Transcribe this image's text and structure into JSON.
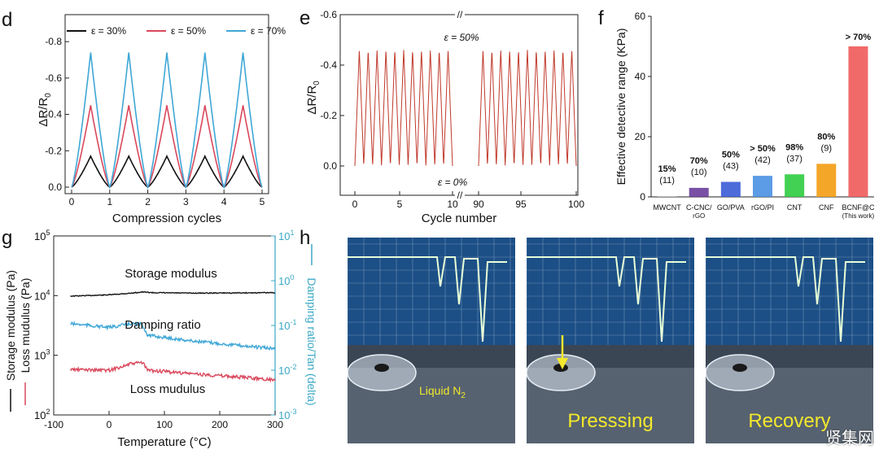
{
  "panel_labels": {
    "d": "d",
    "e": "e",
    "f": "f",
    "g": "g",
    "h": "h"
  },
  "chart_data": [
    {
      "id": "d",
      "type": "line",
      "xlabel": "Compression cycles",
      "ylabel": "ΔR/R",
      "ylabel_sub": "0",
      "xlim": [
        0,
        5
      ],
      "ylim": [
        0.0,
        -0.85
      ],
      "xticks": [
        "0",
        "1",
        "2",
        "3",
        "4",
        "5"
      ],
      "yticks": [
        "0.0",
        "-0.2",
        "-0.4",
        "-0.6",
        "-0.8"
      ],
      "legend_position": "top",
      "series": [
        {
          "name": "ε = 30%",
          "color": "#111111",
          "peak": -0.17,
          "peaks_at": [
            0.5,
            1.5,
            2.5,
            3.5,
            4.5
          ]
        },
        {
          "name": "ε = 50%",
          "color": "#d9485c",
          "peak": -0.45,
          "peaks_at": [
            0.5,
            1.5,
            2.5,
            3.5,
            4.5
          ]
        },
        {
          "name": "ε = 70%",
          "color": "#3fa7d6",
          "peak": -0.74,
          "peaks_at": [
            0.5,
            1.5,
            2.5,
            3.5,
            4.5
          ]
        }
      ]
    },
    {
      "id": "e",
      "type": "line",
      "xlabel": "Cycle number",
      "ylabel": "ΔR/R",
      "ylabel_sub": "0",
      "ylim": [
        0.0,
        -0.6
      ],
      "xticks": [
        "0",
        "5",
        "10",
        "90",
        "95",
        "100"
      ],
      "yticks": [
        "0.0",
        "-0.2",
        "-0.4",
        "-0.6"
      ],
      "annotations": [
        "ε = 50%",
        "ε = 0%"
      ],
      "axis_break": true,
      "series": [
        {
          "name": "",
          "color": "#c0392b",
          "peak": -0.46,
          "segments": [
            {
              "from": 0,
              "to": 10
            },
            {
              "from": 90,
              "to": 100
            }
          ]
        }
      ]
    },
    {
      "id": "f",
      "type": "bar",
      "ylabel": "Effective detective range (KPa)",
      "ylim": [
        0,
        60
      ],
      "yticks": [
        "0",
        "20",
        "40",
        "60"
      ],
      "categories": [
        "MWCNT",
        "C-CNC/\nrGO",
        "GO/PVA",
        "rGO/PI",
        "CNT",
        "CNF",
        "BCNF@C\n(This work)"
      ],
      "values": [
        0.3,
        3,
        5,
        7,
        7.5,
        11,
        50
      ],
      "strain_labels": [
        "15%",
        "70%",
        "50%",
        "> 50%",
        "98%",
        "80%",
        "> 70%"
      ],
      "ref_labels": [
        "(11)",
        "(10)",
        "(43)",
        "(42)",
        "(37)",
        "(9)",
        ""
      ],
      "colors": [
        "#c8c8c8",
        "#6a3d9a",
        "#3b5bd6",
        "#4a90e2",
        "#2ecc40",
        "#f39c12",
        "#f05a5a"
      ]
    },
    {
      "id": "g",
      "type": "line",
      "xlabel": "Temperature (°C)",
      "ylabel_left": "Storage modulus (Pa)",
      "ylabel_left2": "Loss mudulus (Pa)",
      "ylabel_right": "Damping ratio/Tan (delta)",
      "xlim": [
        -100,
        300
      ],
      "xticks": [
        "-100",
        "0",
        "100",
        "200",
        "300"
      ],
      "ylim_left_log": [
        100,
        100000
      ],
      "ylim_right_log": [
        0.001,
        10
      ],
      "left_ticks": [
        {
          "base": "10",
          "exp": "5"
        },
        {
          "base": "10",
          "exp": "4"
        },
        {
          "base": "10",
          "exp": "3"
        },
        {
          "base": "10",
          "exp": "2"
        }
      ],
      "right_ticks": [
        {
          "base": "10",
          "exp": "1"
        },
        {
          "base": "10",
          "exp": "0"
        },
        {
          "base": "10",
          "exp": "-1"
        },
        {
          "base": "10",
          "exp": "-2"
        },
        {
          "base": "10",
          "exp": "-3"
        }
      ],
      "series": [
        {
          "name": "Storage modulus",
          "color": "#111111",
          "axis": "left",
          "points": [
            [
              -70,
              9800
            ],
            [
              0,
              10300
            ],
            [
              40,
              11000
            ],
            [
              60,
              11500
            ],
            [
              80,
              11200
            ],
            [
              150,
              11000
            ],
            [
              300,
              11200
            ]
          ]
        },
        {
          "name": "Damping ratio",
          "color": "#3fa7d6",
          "axis": "right",
          "points": [
            [
              -70,
              0.11
            ],
            [
              0,
              0.09
            ],
            [
              40,
              0.11
            ],
            [
              60,
              0.105
            ],
            [
              70,
              0.06
            ],
            [
              150,
              0.045
            ],
            [
              300,
              0.03
            ]
          ]
        },
        {
          "name": "Loss mudulus",
          "color": "#d9485c",
          "axis": "left",
          "points": [
            [
              -70,
              580
            ],
            [
              0,
              560
            ],
            [
              40,
              720
            ],
            [
              60,
              760
            ],
            [
              70,
              560
            ],
            [
              150,
              490
            ],
            [
              300,
              390
            ]
          ]
        }
      ]
    }
  ],
  "photos": {
    "label": "h",
    "captions": [
      "Liquid N",
      "Presssing",
      "Recovery"
    ],
    "caption_sub": "2"
  },
  "watermark": "贤集网"
}
